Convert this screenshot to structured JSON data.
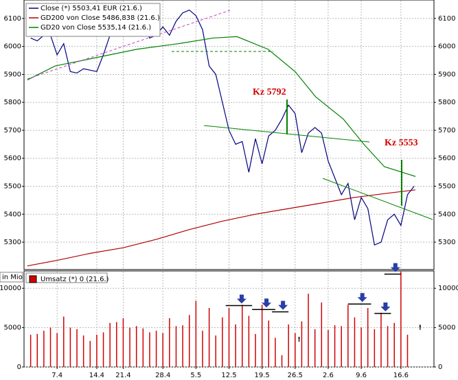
{
  "chart_data": [
    {
      "type": "line",
      "xlim": [
        0,
        62
      ],
      "ylim": [
        5202,
        6166
      ],
      "yticks": [
        5300,
        5400,
        5500,
        5600,
        5700,
        5800,
        5900,
        6000,
        6100
      ],
      "grid": true,
      "legend": "top-left",
      "series": [
        {
          "name": "Close (*) 5503,41 EUR (21.6.)",
          "color": "#000080",
          "x": [
            1,
            2,
            3,
            4,
            5,
            6,
            7,
            8,
            9,
            10,
            11,
            12,
            13,
            14,
            15,
            16,
            17,
            18,
            19,
            20,
            21,
            22,
            23,
            24,
            25,
            26,
            27,
            28,
            29,
            30,
            31,
            32,
            33,
            34,
            35,
            36,
            37,
            38,
            39,
            40,
            41,
            42,
            43,
            44,
            45,
            46,
            47,
            48,
            49,
            50,
            51,
            52,
            53,
            54,
            55,
            56,
            57,
            58,
            59
          ],
          "values": [
            6030,
            6020,
            6040,
            6040,
            5970,
            6010,
            5910,
            5905,
            5920,
            5915,
            5910,
            5970,
            6040,
            6080,
            6090,
            6110,
            6100,
            6080,
            6030,
            6040,
            6070,
            6040,
            6090,
            6120,
            6130,
            6110,
            6060,
            5930,
            5900,
            5800,
            5700,
            5650,
            5660,
            5550,
            5670,
            5580,
            5680,
            5700,
            5740,
            5790,
            5760,
            5620,
            5690,
            5710,
            5690,
            5590,
            5530,
            5470,
            5510,
            5380,
            5460,
            5420,
            5290,
            5300,
            5380,
            5400,
            5360,
            5470,
            5500
          ]
        },
        {
          "name": "GD200 von Close 5486,838 (21.6.)",
          "color": "#b00000",
          "x": [
            0.5,
            5,
            10,
            15,
            20,
            25,
            30,
            35,
            40,
            45,
            50,
            55,
            59.2
          ],
          "values": [
            5215,
            5235,
            5260,
            5280,
            5310,
            5345,
            5375,
            5400,
            5420,
            5440,
            5460,
            5475,
            5487
          ]
        },
        {
          "name": "GD20 von Close 5535,14 (21.6.)",
          "color": "#008000",
          "x": [
            0.5,
            4.7,
            9.9,
            17.1,
            23.4,
            28.6,
            32.2,
            36.9,
            41,
            44.1,
            48.3,
            51.4,
            54.5,
            59.2
          ],
          "values": [
            5880,
            5930,
            5955,
            5990,
            6010,
            6030,
            6035,
            5990,
            5910,
            5820,
            5740,
            5650,
            5570,
            5535
          ]
        }
      ],
      "annotations": [
        "Kz 5792",
        "Kz 5553"
      ]
    },
    {
      "type": "bar",
      "xlim": [
        0,
        62
      ],
      "ylim": [
        0,
        12200
      ],
      "yticks": [
        0,
        5000,
        10000
      ],
      "xticks": [
        {
          "value": 5,
          "label": "7.4"
        },
        {
          "value": 11,
          "label": "14.4"
        },
        {
          "value": 15,
          "label": "21.4"
        },
        {
          "value": 21,
          "label": "28.4"
        },
        {
          "value": 26,
          "label": "5.5"
        },
        {
          "value": 31,
          "label": "12.5"
        },
        {
          "value": 36,
          "label": "19.5"
        },
        {
          "value": 41,
          "label": "26.5"
        },
        {
          "value": 46,
          "label": "2.6"
        },
        {
          "value": 51,
          "label": "9.6"
        },
        {
          "value": 57,
          "label": "16.6"
        }
      ],
      "grid": true,
      "y_label": "in Mio",
      "series": [
        {
          "name": "Umsatz (*) 0 (21.6.)",
          "color": "#d00000",
          "x": [
            1,
            2,
            3,
            4,
            5,
            6,
            7,
            8,
            9,
            10,
            11,
            12,
            13,
            14,
            15,
            16,
            17,
            18,
            19,
            20,
            21,
            22,
            23,
            24,
            25,
            26,
            27,
            28,
            29,
            30,
            31,
            32,
            33,
            34,
            35,
            36,
            37,
            38,
            39,
            40,
            41,
            42,
            43,
            44,
            45,
            46,
            47,
            48,
            49,
            50,
            51,
            52,
            53,
            54,
            55,
            56,
            57,
            58,
            59
          ],
          "values": [
            4100,
            4200,
            4600,
            5000,
            4300,
            6400,
            5000,
            4800,
            4000,
            3300,
            4100,
            4400,
            5600,
            5700,
            6200,
            5000,
            5200,
            4900,
            4400,
            4600,
            4300,
            6200,
            5200,
            5300,
            6600,
            8400,
            4600,
            7500,
            4000,
            6300,
            7500,
            5400,
            7900,
            6500,
            4200,
            7900,
            5900,
            3700,
            1500,
            5400,
            4300,
            5800,
            9300,
            4800,
            8200,
            4700,
            5300,
            5200,
            7900,
            6300,
            5000,
            7500,
            4800,
            6900,
            5200,
            5600,
            12200,
            4100,
            0
          ]
        }
      ],
      "markers": [
        {
          "x": [
            30.5,
            34.5
          ],
          "y": 7800
        },
        {
          "x": [
            34.5,
            38
          ],
          "y": 7300
        },
        {
          "x": [
            37.5,
            40
          ],
          "y": 7000
        },
        {
          "x": [
            49,
            52.5
          ],
          "y": 8000
        },
        {
          "x": [
            53,
            55.5
          ],
          "y": 6800
        },
        {
          "x": [
            54.5,
            57
          ],
          "y": 11800
        }
      ],
      "flags": [
        {
          "x": 41.6,
          "y": 3500,
          "label": "!"
        },
        {
          "x": 59.9,
          "y": 5000,
          "label": "!"
        }
      ]
    }
  ]
}
